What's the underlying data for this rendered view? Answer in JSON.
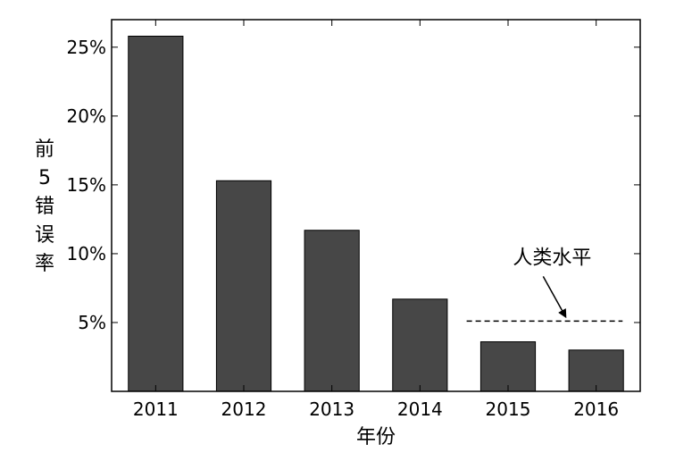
{
  "chart_data": {
    "type": "bar",
    "categories": [
      "2011",
      "2012",
      "2013",
      "2014",
      "2015",
      "2016"
    ],
    "values": [
      25.8,
      15.3,
      11.7,
      6.7,
      3.6,
      3.0
    ],
    "title": "",
    "xlabel": "年份",
    "ylabel_chars": [
      "前",
      "5",
      "错",
      "误",
      "率"
    ],
    "ylim": [
      0,
      27
    ],
    "yticks": [
      5,
      10,
      15,
      20,
      25
    ],
    "ytick_labels": [
      "5%",
      "10%",
      "15%",
      "20%",
      "25%"
    ],
    "grid": false,
    "legend": "none",
    "reference_line": {
      "label": "人类水平",
      "value": 5.1,
      "from_index": 4,
      "to_index": 5,
      "style": "dashed"
    },
    "colors": {
      "bar": "#474747",
      "bar_edge": "#000000",
      "axis": "#000000",
      "reference": "#000000"
    }
  }
}
